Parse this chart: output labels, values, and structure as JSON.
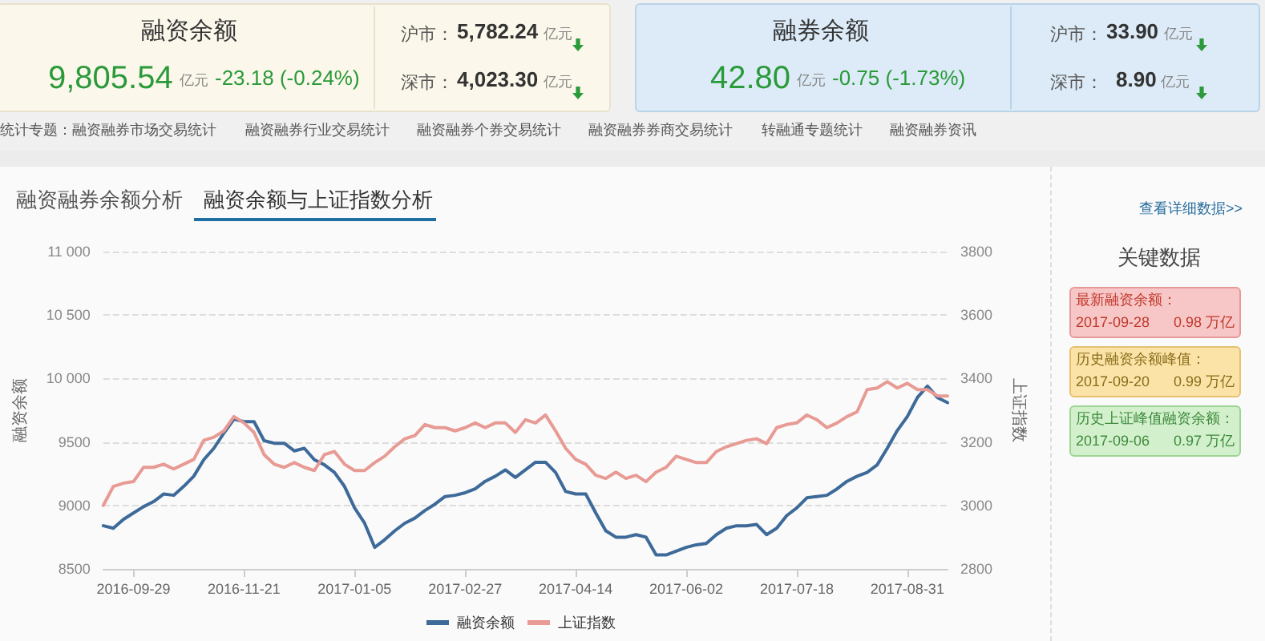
{
  "chart_data": [
    {
      "type": "other",
      "annotations": [
        "融资余额",
        "9,805.54",
        "亿元",
        "-23.18 (-0.24%)",
        "沪市：",
        "5,782.24",
        "亿元",
        "深市：",
        "4,023.30",
        "亿元",
        "融券余额",
        "42.80",
        "亿元",
        "-0.75 (-1.73%)",
        "沪市：",
        "33.90",
        "亿元",
        "深市：",
        "8.90",
        "亿元",
        "统计专题：",
        "融资融券市场交易统计",
        "融资融券行业交易统计",
        "融资融券个券交易统计",
        "融资融券券商交易统计",
        "转融通专题统计",
        "融资融券资讯",
        "融资融券余额分析",
        "融资余额与上证指数分析"
      ]
    },
    {
      "type": "line",
      "ylabel": "融资余额",
      "y2label": "上证指数",
      "categories": [
        null,
        null,
        null,
        "2016-09-29",
        null,
        null,
        null,
        null,
        null,
        null,
        null,
        null,
        null,
        null,
        "2016-11-21",
        null,
        null,
        null,
        null,
        null,
        null,
        null,
        null,
        null,
        null,
        "2017-01-05",
        null,
        null,
        null,
        null,
        null,
        null,
        null,
        null,
        null,
        null,
        "2017-02-27",
        null,
        null,
        null,
        null,
        null,
        null,
        null,
        null,
        null,
        null,
        "2017-04-14",
        null,
        null,
        null,
        null,
        null,
        null,
        null,
        null,
        null,
        null,
        "2017-06-02",
        null,
        null,
        null,
        null,
        null,
        null,
        null,
        null,
        null,
        null,
        "2017-07-18",
        null,
        null,
        null,
        null,
        null,
        null,
        null,
        null,
        null,
        null,
        "2017-08-31",
        null,
        null,
        null,
        null
      ],
      "series": [
        {
          "name": "融资余额",
          "color": "#3d6a99",
          "values": [
            8840,
            8820,
            8890,
            8940,
            8990,
            9030,
            9090,
            9080,
            9150,
            9230,
            9360,
            9450,
            9570,
            9680,
            9660,
            9660,
            9510,
            9490,
            9490,
            9430,
            9450,
            9360,
            9320,
            9260,
            9150,
            8980,
            8860,
            8670,
            8730,
            8800,
            8860,
            8900,
            8960,
            9010,
            9070,
            9080,
            9100,
            9130,
            9190,
            9230,
            9280,
            9220,
            9280,
            9340,
            9340,
            9260,
            9110,
            9090,
            9090,
            8940,
            8800,
            8750,
            8750,
            8770,
            8750,
            8610,
            8610,
            8640,
            8670,
            8690,
            8700,
            8770,
            8820,
            8840,
            8840,
            8850,
            8770,
            8820,
            8920,
            8980,
            9060,
            9070,
            9080,
            9130,
            9190,
            9230,
            9260,
            9320,
            9450,
            9590,
            9700,
            9850,
            9940,
            9850,
            9810
          ]
        },
        {
          "name": "上证指数",
          "color": "#e89a94",
          "axis": "y2",
          "values": [
            3000,
            3060,
            3070,
            3075,
            3120,
            3120,
            3130,
            3115,
            3130,
            3145,
            3205,
            3215,
            3235,
            3280,
            3260,
            3230,
            3160,
            3130,
            3120,
            3135,
            3120,
            3110,
            3160,
            3170,
            3130,
            3110,
            3110,
            3135,
            3155,
            3185,
            3210,
            3220,
            3255,
            3245,
            3245,
            3235,
            3245,
            3260,
            3245,
            3260,
            3260,
            3230,
            3270,
            3260,
            3285,
            3235,
            3180,
            3145,
            3130,
            3095,
            3085,
            3105,
            3085,
            3095,
            3075,
            3105,
            3120,
            3155,
            3145,
            3135,
            3135,
            3170,
            3185,
            3195,
            3205,
            3210,
            3195,
            3245,
            3255,
            3260,
            3285,
            3270,
            3245,
            3260,
            3280,
            3295,
            3365,
            3370,
            3390,
            3370,
            3385,
            3365,
            3365,
            3345,
            3345
          ]
        }
      ],
      "ylim": [
        8500,
        11000
      ],
      "yticks": [
        8500,
        9000,
        9500,
        {
          "value": 10000,
          "label": "10 000"
        },
        {
          "value": 10500,
          "label": "10 500"
        },
        {
          "value": 11000,
          "label": "11 000"
        }
      ],
      "y2lim": [
        2800,
        3800
      ],
      "y2ticks": [
        2800,
        3000,
        3200,
        3400,
        3600,
        3800
      ],
      "grid": "y",
      "legend": "bottom",
      "marker": "none",
      "line_style": "solid"
    },
    {
      "type": "other",
      "title": "关键数据",
      "annotations": [
        "查看详细数据>>",
        "最新融资余额：",
        "2017-09-28",
        "0.98 万亿",
        "历史融资余额峰值：",
        "2017-09-20",
        "0.99 万亿",
        "历史上证峰值融资余额：",
        "2017-09-06",
        "0.97 万亿"
      ]
    }
  ]
}
